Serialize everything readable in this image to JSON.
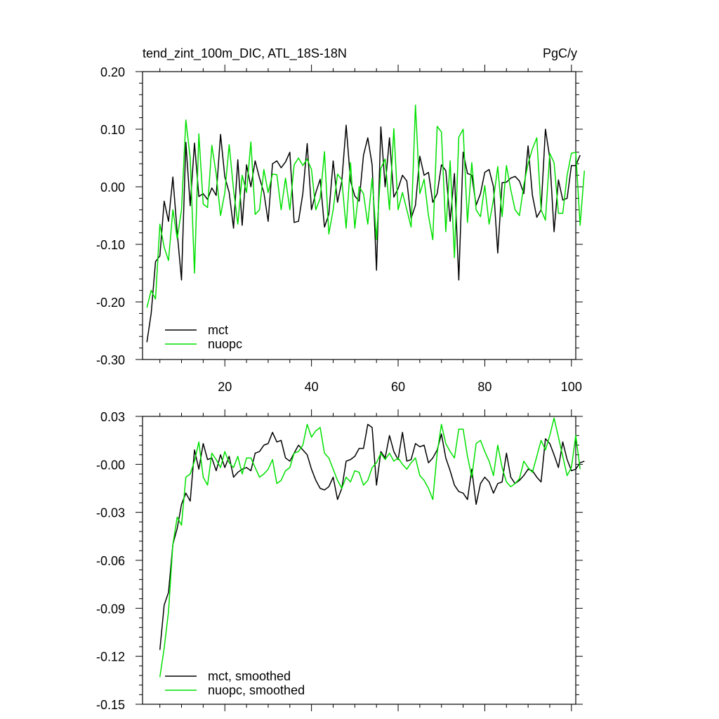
{
  "chart_data": [
    {
      "type": "line",
      "title": "tend_zint_100m_DIC, ATL_18S-18N",
      "units": "PgC/y",
      "xlabel": "",
      "ylabel": "",
      "xlim": [
        1,
        101
      ],
      "ylim": [
        -0.3,
        0.2
      ],
      "xticks": [
        20,
        40,
        60,
        80,
        100
      ],
      "yticks": [
        -0.3,
        -0.2,
        -0.1,
        0.0,
        0.1,
        0.2
      ],
      "ytick_labels": [
        "-0.30",
        "-0.20",
        "-0.10",
        "0.00",
        "0.10",
        "0.20"
      ],
      "grid": false,
      "legend_position": "bottom-left",
      "x_start": 2,
      "series": [
        {
          "name": "mct",
          "color": "#000000",
          "values": [
            -0.27,
            -0.22,
            -0.13,
            -0.12,
            -0.025,
            -0.06,
            0.017,
            -0.08,
            -0.162,
            0.077,
            -0.033,
            0.076,
            -0.017,
            -0.012,
            -0.022,
            -0.002,
            -0.015,
            0.091,
            0.017,
            -0.01,
            -0.072,
            0.047,
            -0.067,
            0.038,
            0.0,
            0.045,
            0.015,
            -0.01,
            -0.06,
            0.04,
            0.045,
            0.033,
            0.043,
            0.06,
            -0.062,
            -0.06,
            -0.012,
            0.075,
            -0.04,
            -0.01,
            0.013,
            -0.07,
            -0.048,
            0.045,
            -0.027,
            0.01,
            0.107,
            0.01,
            -0.016,
            -0.025,
            0.055,
            0.085,
            0.038,
            -0.145,
            0.104,
            0.0,
            0.085,
            -0.018,
            -0.003,
            0.02,
            0.01,
            -0.055,
            -0.032,
            0.053,
            0.02,
            0.025,
            -0.027,
            -0.012,
            0.038,
            0.028,
            -0.06,
            0.023,
            -0.162,
            0.06,
            0.023,
            0.02,
            -0.032,
            -0.012,
            0.025,
            0.03,
            0.0,
            -0.115,
            0.007,
            0.008,
            0.015,
            0.018,
            0.01,
            -0.012,
            0.071,
            -0.015,
            -0.053,
            -0.04,
            0.1,
            0.05,
            -0.078,
            0.012,
            -0.023,
            -0.02,
            0.037,
            0.037,
            0.055
          ]
        },
        {
          "name": "nuopc",
          "color": "#00e000",
          "values": [
            -0.21,
            -0.18,
            -0.195,
            -0.065,
            -0.105,
            -0.128,
            -0.04,
            -0.09,
            -0.04,
            0.116,
            0.05,
            -0.15,
            0.092,
            -0.03,
            -0.036,
            0.072,
            0.022,
            -0.05,
            -0.01,
            0.073,
            -0.005,
            -0.065,
            0.02,
            -0.01,
            0.078,
            -0.048,
            -0.04,
            0.03,
            -0.01,
            0.022,
            0.021,
            -0.04,
            0.015,
            -0.04,
            0.038,
            0.05,
            0.037,
            0.048,
            0.03,
            -0.04,
            -0.02,
            0.061,
            -0.082,
            -0.04,
            0.022,
            0.012,
            -0.072,
            0.042,
            -0.072,
            0.0,
            -0.012,
            -0.065,
            0.015,
            -0.092,
            0.032,
            0.048,
            -0.04,
            0.101,
            -0.04,
            -0.01,
            -0.04,
            -0.07,
            0.142,
            -0.012,
            0.013,
            -0.05,
            -0.092,
            0.105,
            0.095,
            -0.078,
            0.045,
            -0.123,
            0.086,
            0.1,
            -0.062,
            0.042,
            -0.04,
            -0.052,
            0.002,
            -0.065,
            -0.022,
            0.035,
            -0.052,
            0.037,
            -0.005,
            -0.04,
            -0.05,
            0.003,
            0.04,
            0.066,
            0.085,
            -0.04,
            -0.058,
            0.058,
            0.042,
            -0.046,
            -0.046,
            0.02,
            0.058,
            0.06,
            -0.067,
            0.028
          ]
        }
      ]
    },
    {
      "type": "line",
      "title": "",
      "xlabel": "",
      "ylabel": "",
      "xlim": [
        1,
        101
      ],
      "ylim": [
        -0.15,
        0.03
      ],
      "xticks": [
        20,
        40,
        60,
        80,
        100
      ],
      "yticks": [
        -0.15,
        -0.12,
        -0.09,
        -0.06,
        -0.03,
        0.0,
        0.03
      ],
      "ytick_labels": [
        "-0.15",
        "-0.12",
        "-0.09",
        "-0.06",
        "-0.03",
        "-0.00",
        "0.03"
      ],
      "grid": false,
      "legend_position": "bottom-left",
      "x_start": 5,
      "series": [
        {
          "name": "mct, smoothed",
          "color": "#000000",
          "values": [
            -0.116,
            -0.088,
            -0.08,
            -0.05,
            -0.04,
            -0.025,
            -0.018,
            -0.023,
            0.009,
            -0.003,
            0.013,
            0.003,
            0.004,
            -0.004,
            0.006,
            -0.002,
            0.005,
            -0.008,
            -0.005,
            -0.003,
            -0.002,
            -0.004,
            0.007,
            0.008,
            0.012,
            0.013,
            0.02,
            0.014,
            0.015,
            0.004,
            0.002,
            0.007,
            0.012,
            0.009,
            0.006,
            -0.003,
            -0.01,
            -0.015,
            -0.016,
            -0.014,
            -0.008,
            -0.022,
            -0.015,
            0.002,
            0.003,
            0.005,
            0.01,
            0.01,
            0.025,
            0.023,
            -0.013,
            0.008,
            0.004,
            0.018,
            0.008,
            0.003,
            0.02,
            0.002,
            0.003,
            0.013,
            0.011,
            0.012,
            0.001,
            0.004,
            0.009,
            0.019,
            0.004,
            -0.004,
            -0.013,
            -0.017,
            -0.018,
            -0.022,
            -0.003,
            -0.025,
            -0.012,
            -0.008,
            -0.011,
            -0.018,
            -0.012,
            -0.011,
            0.007,
            -0.008,
            -0.012,
            -0.01,
            -0.007,
            -0.003,
            -0.004,
            -0.008,
            -0.011,
            0.016,
            0.013,
            0.006,
            -0.002,
            0.014,
            0.003,
            -0.004,
            -0.003,
            0.001,
            0.002
          ]
        },
        {
          "name": "nuopc, smoothed",
          "color": "#00e000",
          "values": [
            -0.133,
            -0.115,
            -0.092,
            -0.05,
            -0.033,
            -0.038,
            -0.008,
            -0.006,
            0.002,
            0.014,
            -0.008,
            -0.013,
            0.007,
            0.003,
            -0.002,
            0.008,
            0.001,
            -0.002,
            0.005,
            -0.006,
            0.004,
            0.004,
            -0.002,
            -0.008,
            -0.006,
            -0.003,
            0.003,
            -0.012,
            -0.01,
            -0.004,
            -0.002,
            0.007,
            0.008,
            0.012,
            0.025,
            0.017,
            0.021,
            0.023,
            0.007,
            0.004,
            -0.003,
            -0.01,
            -0.015,
            -0.008,
            -0.011,
            -0.004,
            -0.005,
            -0.013,
            -0.01,
            -0.002,
            0.001,
            0.007,
            0.003,
            0.007,
            0.002,
            0.004,
            0.0,
            -0.003,
            0.001,
            0.004,
            -0.007,
            -0.01,
            -0.015,
            -0.022,
            0.007,
            0.025,
            0.013,
            0.008,
            0.004,
            0.022,
            0.022,
            0.005,
            -0.008,
            0.013,
            0.015,
            0.008,
            0.002,
            -0.007,
            0.012,
            -0.002,
            -0.011,
            -0.014,
            -0.012,
            -0.009,
            0.002,
            -0.002,
            -0.005,
            0.005,
            0.015,
            0.009,
            0.018,
            0.029,
            0.017,
            0.005,
            -0.007,
            -0.002,
            0.018,
            -0.003
          ]
        }
      ]
    }
  ]
}
